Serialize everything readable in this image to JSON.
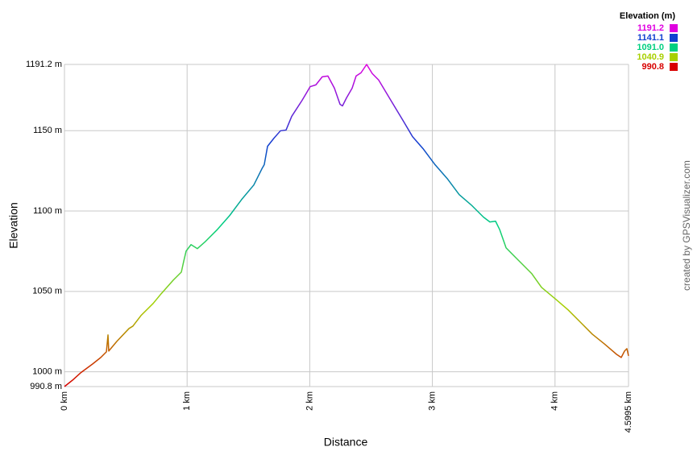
{
  "chart_data": {
    "type": "line",
    "x_label": "Distance",
    "y_label": "Elevation",
    "legend_title": "Elevation (m)",
    "credit": "created by GPSVisualizer.com",
    "color_scale": [
      {
        "value": 1191.2,
        "color": "#e000e0"
      },
      {
        "value": 1141.1,
        "color": "#1040d0"
      },
      {
        "value": 1091,
        "label": "1091.0",
        "color": "#00d080"
      },
      {
        "value": 1040.9,
        "color": "#a8d000"
      },
      {
        "value": 990.8,
        "color": "#d80000"
      }
    ],
    "x": [
      0,
      0.066,
      0.131,
      0.23,
      0.296,
      0.342,
      0.355,
      0.361,
      0.427,
      0.526,
      0.558,
      0.624,
      0.723,
      0.788,
      0.887,
      0.953,
      0.972,
      0.992,
      1.032,
      1.084,
      1.15,
      1.248,
      1.347,
      1.445,
      1.544,
      1.61,
      1.629,
      1.656,
      1.708,
      1.761,
      1.807,
      1.853,
      1.938,
      2.004,
      2.05,
      2.102,
      2.148,
      2.201,
      2.247,
      2.267,
      2.3,
      2.346,
      2.378,
      2.418,
      2.464,
      2.51,
      2.562,
      2.661,
      2.76,
      2.838,
      2.924,
      3.022,
      3.121,
      3.219,
      3.318,
      3.417,
      3.469,
      3.515,
      3.548,
      3.601,
      3.679,
      3.811,
      3.89,
      4.008,
      4.107,
      4.205,
      4.304,
      4.402,
      4.501,
      4.54,
      4.567,
      4.586,
      4.5995
    ],
    "values": [
      990.8,
      994.8,
      999.3,
      1004.9,
      1008.9,
      1012.4,
      1022.9,
      1012.9,
      1018.9,
      1026.9,
      1028.4,
      1035,
      1042.5,
      1048.5,
      1057,
      1062,
      1068.6,
      1075.1,
      1079.1,
      1076.6,
      1081.1,
      1088.6,
      1097.2,
      1107.2,
      1116.2,
      1126.3,
      1128.8,
      1140.3,
      1145.3,
      1149.9,
      1150.4,
      1158.9,
      1168.9,
      1177.4,
      1178.5,
      1183.5,
      1184,
      1176.5,
      1166.4,
      1165.4,
      1170.4,
      1176.5,
      1184,
      1186,
      1191.2,
      1185.5,
      1181.5,
      1168.9,
      1156.4,
      1146.3,
      1138.8,
      1128.8,
      1120.2,
      1110.2,
      1103.7,
      1096.2,
      1093.2,
      1093.7,
      1088.6,
      1077.1,
      1071.1,
      1061,
      1052.5,
      1045,
      1038.5,
      1031,
      1023.4,
      1017.4,
      1010.9,
      1008.9,
      1012.9,
      1014.4,
      1009.9
    ],
    "xlim": [
      0,
      4.5995
    ],
    "ylim": [
      990.8,
      1191.2
    ],
    "xticks": [
      {
        "value": 0,
        "label": "0 km"
      },
      {
        "value": 1,
        "label": "1 km"
      },
      {
        "value": 2,
        "label": "2 km"
      },
      {
        "value": 3,
        "label": "3 km"
      },
      {
        "value": 4,
        "label": "4 km"
      },
      {
        "value": 4.5995,
        "label": "4.5995 km"
      }
    ],
    "yticks": [
      {
        "value": 990.8,
        "label": "990.8 m"
      },
      {
        "value": 1000,
        "label": "1000 m"
      },
      {
        "value": 1050,
        "label": "1050 m"
      },
      {
        "value": 1100,
        "label": "1100 m"
      },
      {
        "value": 1150,
        "label": "1150 m"
      },
      {
        "value": 1191.2,
        "label": "1191.2 m"
      }
    ],
    "grid": true
  }
}
